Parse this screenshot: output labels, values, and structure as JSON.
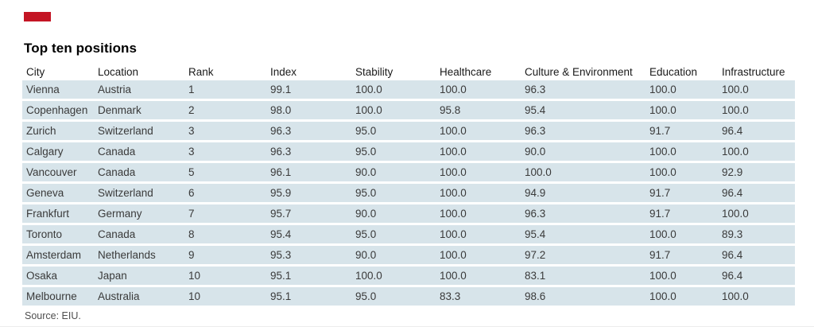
{
  "accent_color": "#c41524",
  "chart_data": {
    "type": "table",
    "title": "Top ten positions",
    "source": "Source: EIU.",
    "row_background": "#d7e4ea",
    "columns": [
      "City",
      "Location",
      "Rank",
      "Index",
      "Stability",
      "Healthcare",
      "Culture & Environment",
      "Education",
      "Infrastructure"
    ],
    "rows": [
      [
        "Vienna",
        "Austria",
        "1",
        "99.1",
        "100.0",
        "100.0",
        "96.3",
        "100.0",
        "100.0"
      ],
      [
        "Copenhagen",
        "Denmark",
        "2",
        "98.0",
        "100.0",
        "95.8",
        "95.4",
        "100.0",
        "100.0"
      ],
      [
        "Zurich",
        "Switzerland",
        "3",
        "96.3",
        "95.0",
        "100.0",
        "96.3",
        "91.7",
        "96.4"
      ],
      [
        "Calgary",
        "Canada",
        "3",
        "96.3",
        "95.0",
        "100.0",
        "90.0",
        "100.0",
        "100.0"
      ],
      [
        "Vancouver",
        "Canada",
        "5",
        "96.1",
        "90.0",
        "100.0",
        "100.0",
        "100.0",
        "92.9"
      ],
      [
        "Geneva",
        "Switzerland",
        "6",
        "95.9",
        "95.0",
        "100.0",
        "94.9",
        "91.7",
        "96.4"
      ],
      [
        "Frankfurt",
        "Germany",
        "7",
        "95.7",
        "90.0",
        "100.0",
        "96.3",
        "91.7",
        "100.0"
      ],
      [
        "Toronto",
        "Canada",
        "8",
        "95.4",
        "95.0",
        "100.0",
        "95.4",
        "100.0",
        "89.3"
      ],
      [
        "Amsterdam",
        "Netherlands",
        "9",
        "95.3",
        "90.0",
        "100.0",
        "97.2",
        "91.7",
        "96.4"
      ],
      [
        "Osaka",
        "Japan",
        "10",
        "95.1",
        "100.0",
        "100.0",
        "83.1",
        "100.0",
        "96.4"
      ],
      [
        "Melbourne",
        "Australia",
        "10",
        "95.1",
        "95.0",
        "83.3",
        "98.6",
        "100.0",
        "100.0"
      ]
    ]
  }
}
